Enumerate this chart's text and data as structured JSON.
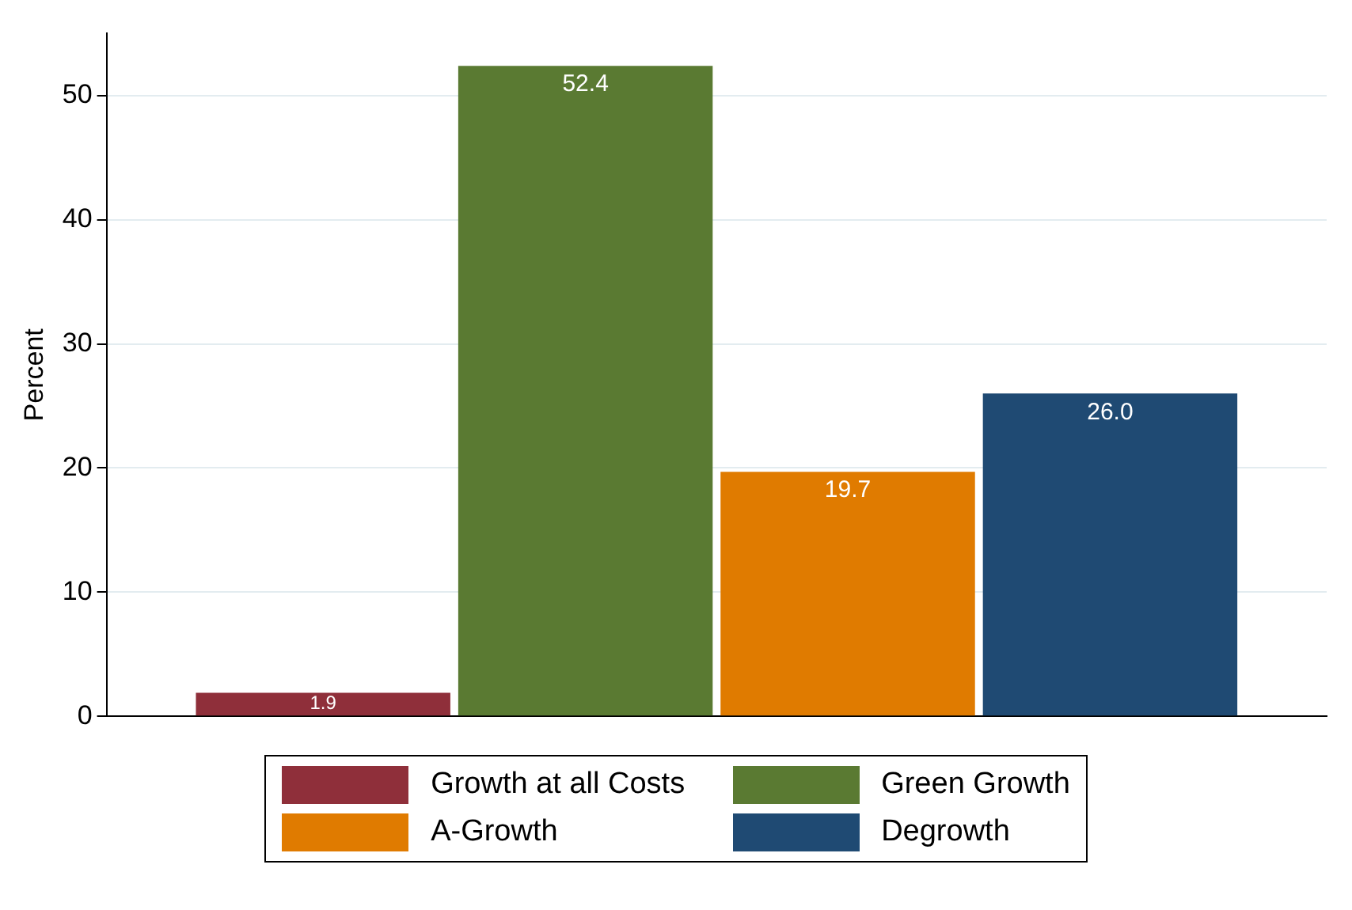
{
  "chart_data": {
    "type": "bar",
    "ylabel": "Percent",
    "categories": [
      null
    ],
    "series": [
      {
        "name": "Growth at all Costs",
        "color": "#8f2f3a",
        "values": [
          1.9
        ],
        "value_labels": [
          "1.9"
        ]
      },
      {
        "name": "Green Growth",
        "color": "#5a7a32",
        "values": [
          52.4
        ],
        "value_labels": [
          "52.4"
        ]
      },
      {
        "name": "A-Growth",
        "color": "#e07b00",
        "values": [
          19.7
        ],
        "value_labels": [
          "19.7"
        ]
      },
      {
        "name": "Degrowth",
        "color": "#1f4a73",
        "values": [
          26.0
        ],
        "value_labels": [
          "26.0"
        ]
      }
    ],
    "ylim": [
      0,
      55
    ],
    "yticks": [
      0,
      10,
      20,
      30,
      40,
      50
    ],
    "grid": "y",
    "legend": "bottom"
  }
}
